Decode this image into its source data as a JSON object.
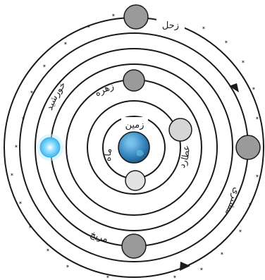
{
  "labels": {
    "earth": "زمین",
    "moon": "ماه",
    "mercury": "عطارد",
    "venus": "زهره",
    "sun": "خورشید",
    "mars": "مریخ",
    "jupiter": "مشتری",
    "saturn": "زحل"
  },
  "colors": {
    "orbit": "#1a1a1a",
    "planet_fill": "#9a9a9a",
    "moon_fill": "#e2e2e2",
    "mercury_fill": "#d6d6d6",
    "earth_fill": "#3d8fc6",
    "sun_fill": "#66ccff",
    "star": "#333333"
  }
}
